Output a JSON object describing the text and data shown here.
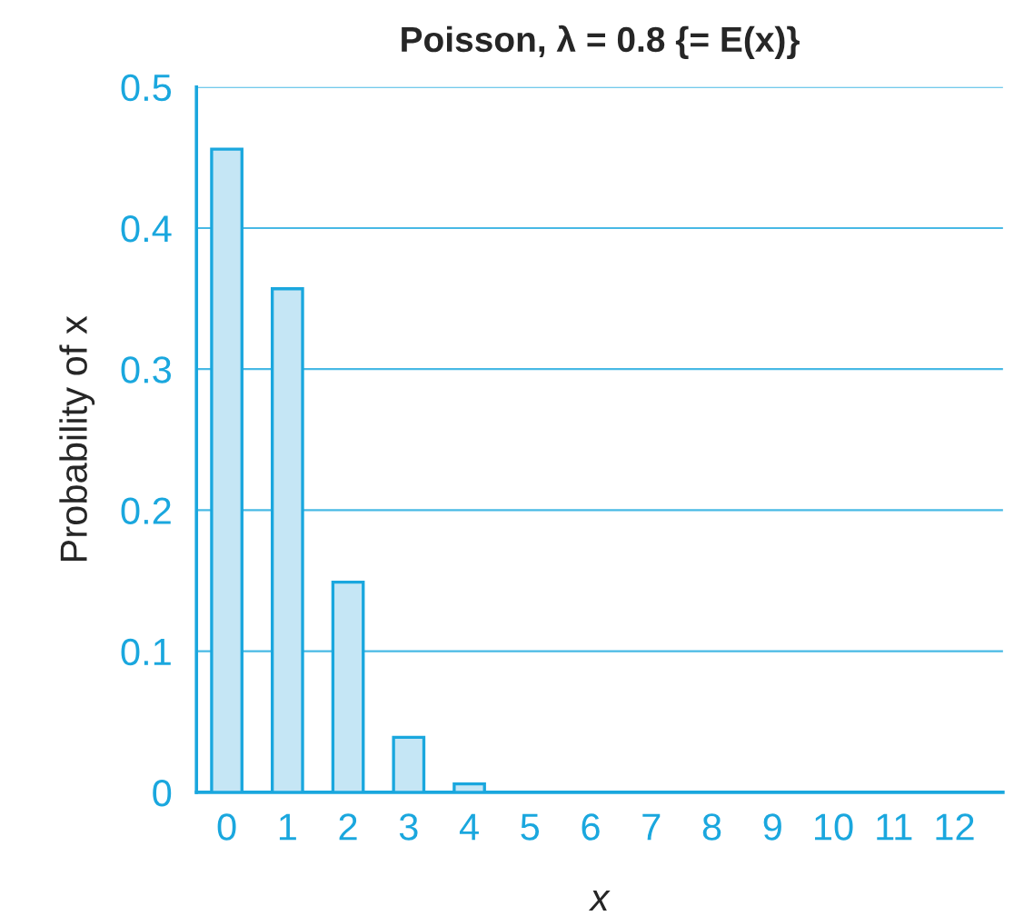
{
  "chart_data": {
    "type": "bar",
    "title": "Poisson, λ = 0.8 {= E(x)}",
    "xlabel": "x",
    "ylabel": "Probability of x",
    "categories": [
      "0",
      "1",
      "2",
      "3",
      "4",
      "5",
      "6",
      "7",
      "8",
      "9",
      "10",
      "11",
      "12"
    ],
    "series": [
      {
        "color": "#c5e6f5",
        "values": [
          0.456,
          0.357,
          0.149,
          0.039,
          0.006,
          null,
          null,
          null,
          null,
          null,
          null,
          null,
          null
        ]
      }
    ],
    "ylim": [
      0,
      0.5
    ],
    "yticks": [
      0,
      0.1,
      0.2,
      0.3,
      0.4,
      0.5
    ],
    "grid": "y",
    "legend": false
  }
}
